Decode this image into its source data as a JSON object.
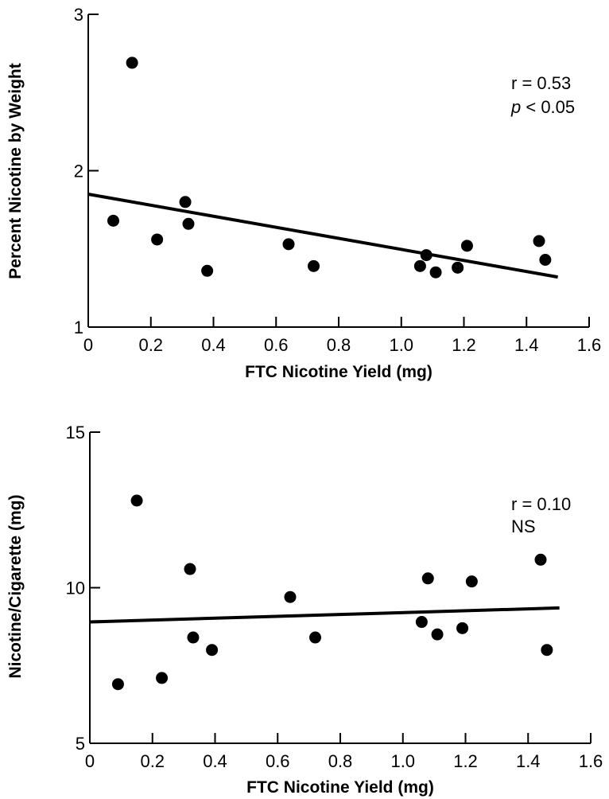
{
  "chart_data": [
    {
      "type": "scatter",
      "xlabel": "FTC Nicotine Yield (mg)",
      "ylabel": "Percent Nicotine by Weight",
      "xlim": [
        0,
        1.6
      ],
      "ylim": [
        1,
        3
      ],
      "xticks": [
        "0",
        "0.2",
        "0.4",
        "0.6",
        "0.8",
        "1.0",
        "1.2",
        "1.4",
        "1.6"
      ],
      "yticks": [
        "1",
        "2",
        "3"
      ],
      "points": [
        {
          "x": 0.08,
          "y": 1.68
        },
        {
          "x": 0.14,
          "y": 2.69
        },
        {
          "x": 0.22,
          "y": 1.56
        },
        {
          "x": 0.31,
          "y": 1.8
        },
        {
          "x": 0.32,
          "y": 1.66
        },
        {
          "x": 0.38,
          "y": 1.36
        },
        {
          "x": 0.64,
          "y": 1.53
        },
        {
          "x": 0.72,
          "y": 1.39
        },
        {
          "x": 1.06,
          "y": 1.39
        },
        {
          "x": 1.08,
          "y": 1.46
        },
        {
          "x": 1.11,
          "y": 1.35
        },
        {
          "x": 1.18,
          "y": 1.38
        },
        {
          "x": 1.21,
          "y": 1.52
        },
        {
          "x": 1.44,
          "y": 1.55
        },
        {
          "x": 1.46,
          "y": 1.43
        }
      ],
      "fit_line": {
        "x": [
          0,
          1.5
        ],
        "y": [
          1.85,
          1.32
        ]
      },
      "annotation": {
        "r": "r = 0.53",
        "p_prefix": "p",
        "p_rest": " < 0.05"
      },
      "grid": false
    },
    {
      "type": "scatter",
      "xlabel": "FTC Nicotine Yield (mg)",
      "ylabel": "Nicotine/Cigarette (mg)",
      "xlim": [
        0,
        1.6
      ],
      "ylim": [
        5,
        15
      ],
      "xticks": [
        "0",
        "0.2",
        "0.4",
        "0.6",
        "0.8",
        "1.0",
        "1.2",
        "1.4",
        "1.6"
      ],
      "yticks": [
        "5",
        "10",
        "15"
      ],
      "points": [
        {
          "x": 0.09,
          "y": 6.9
        },
        {
          "x": 0.15,
          "y": 12.8
        },
        {
          "x": 0.23,
          "y": 7.1
        },
        {
          "x": 0.32,
          "y": 10.6
        },
        {
          "x": 0.33,
          "y": 8.4
        },
        {
          "x": 0.39,
          "y": 8.0
        },
        {
          "x": 0.64,
          "y": 9.7
        },
        {
          "x": 0.72,
          "y": 8.4
        },
        {
          "x": 1.06,
          "y": 8.9
        },
        {
          "x": 1.08,
          "y": 10.3
        },
        {
          "x": 1.11,
          "y": 8.5
        },
        {
          "x": 1.19,
          "y": 8.7
        },
        {
          "x": 1.22,
          "y": 10.2
        },
        {
          "x": 1.44,
          "y": 10.9
        },
        {
          "x": 1.46,
          "y": 8.0
        }
      ],
      "fit_line": {
        "x": [
          0,
          1.5
        ],
        "y": [
          8.9,
          9.35
        ]
      },
      "annotation": {
        "r": "r = 0.10",
        "p_prefix": "",
        "p_rest": "NS"
      },
      "grid": false
    }
  ]
}
